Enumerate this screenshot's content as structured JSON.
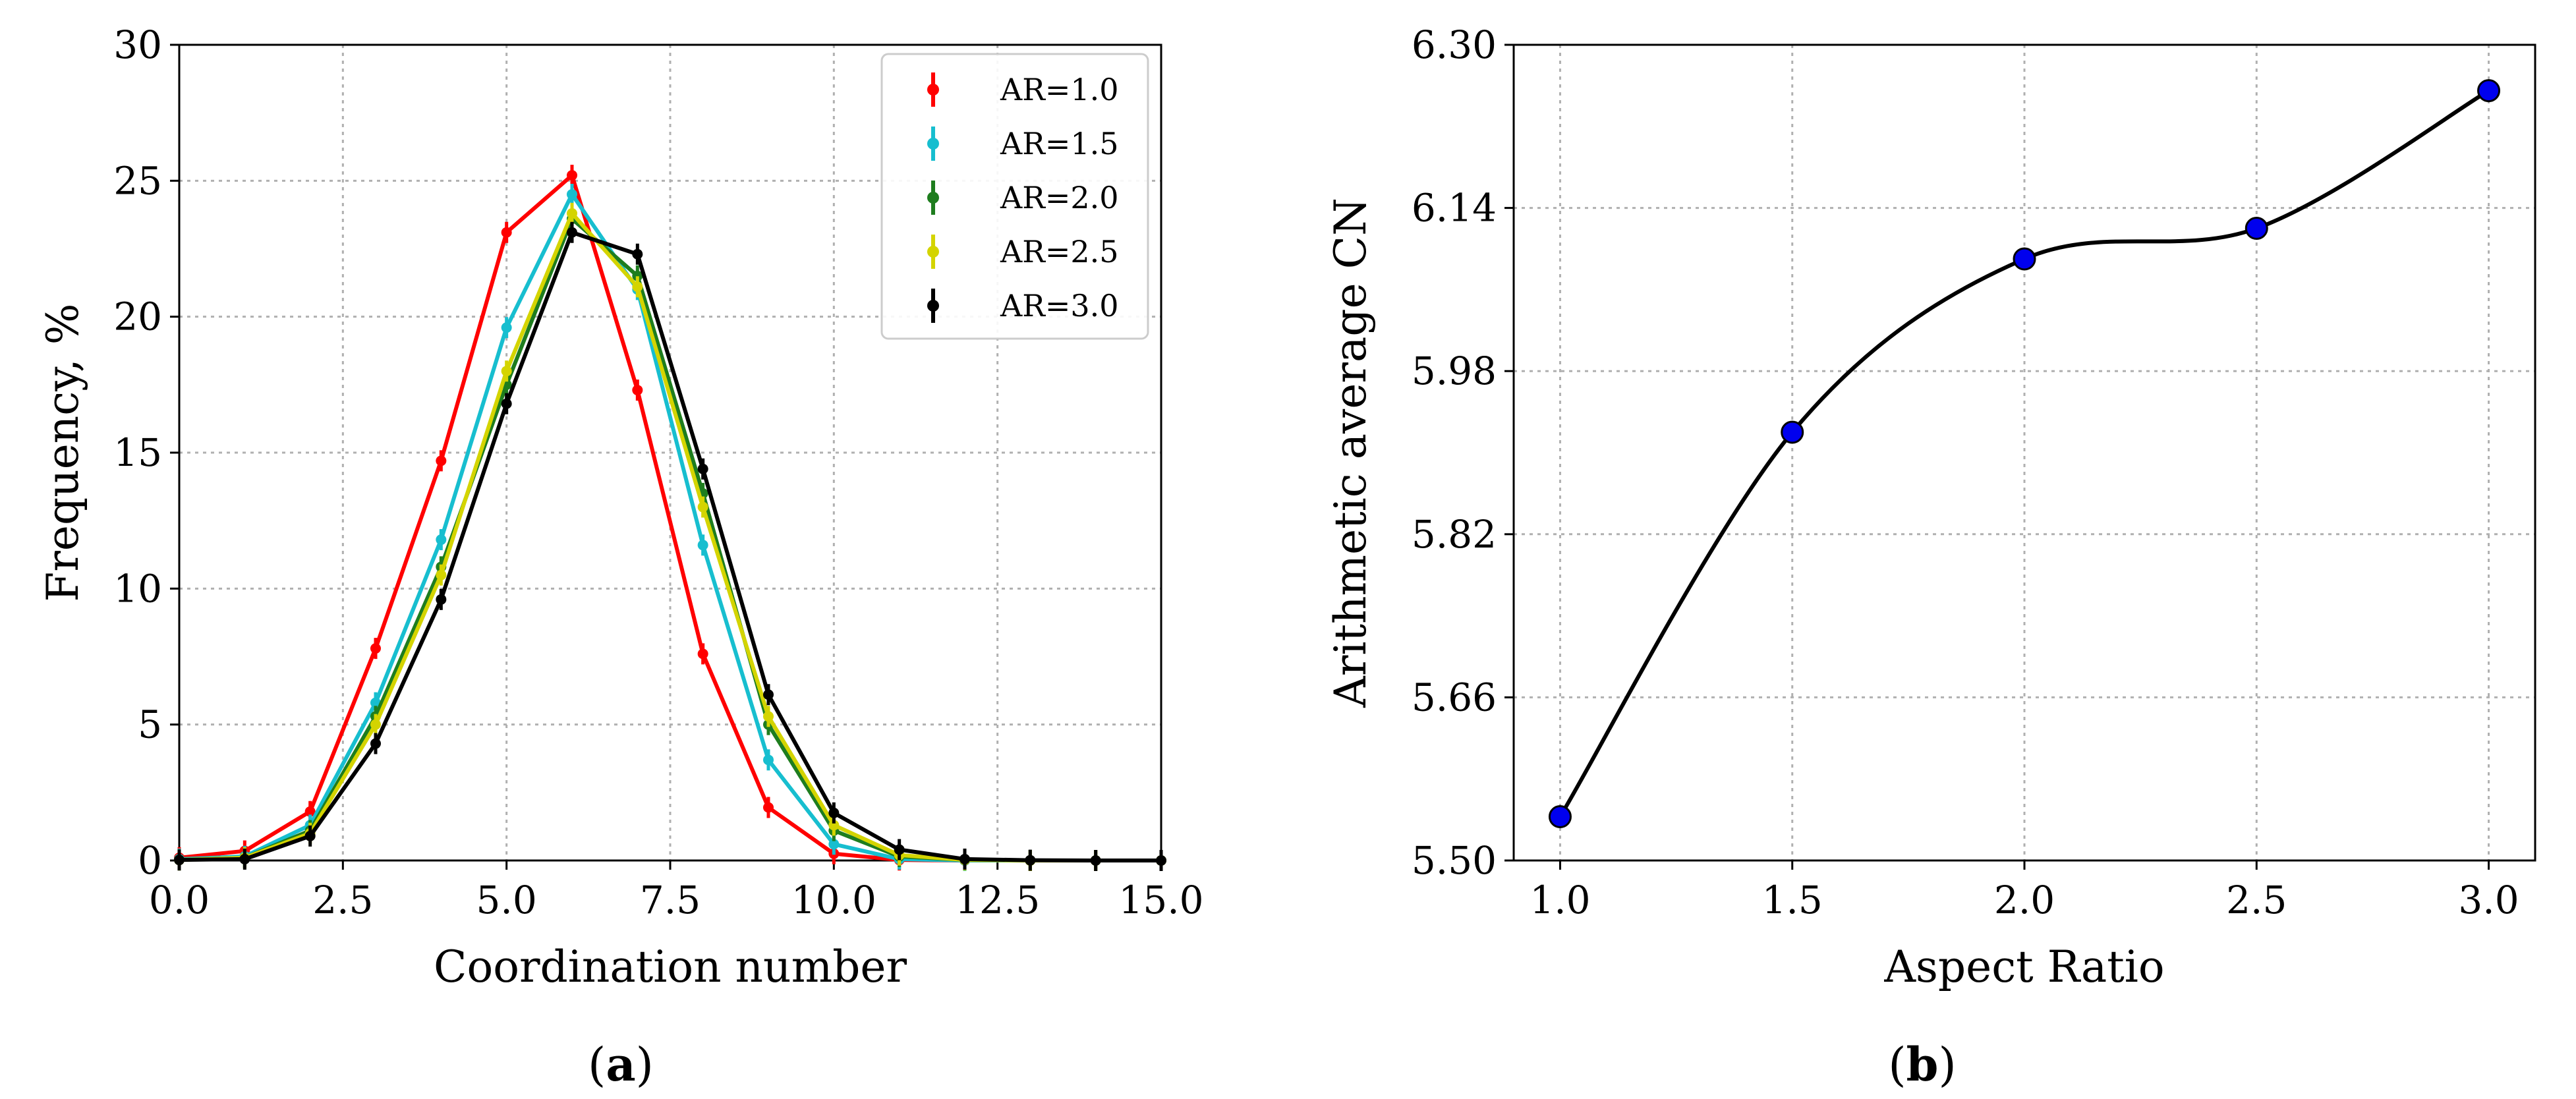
{
  "chart_data": [
    {
      "panel": "a",
      "type": "line",
      "xlabel": "Coordination number",
      "ylabel": "Frequency, %",
      "xlim": [
        0,
        15
      ],
      "ylim": [
        0,
        30
      ],
      "xticks": [
        "0.0",
        "2.5",
        "5.0",
        "7.5",
        "10.0",
        "12.5",
        "15.0"
      ],
      "yticks": [
        "0",
        "5",
        "10",
        "15",
        "20",
        "25",
        "30"
      ],
      "grid": true,
      "legend": "top-right",
      "x": [
        0,
        1,
        2,
        3,
        4,
        5,
        6,
        7,
        8,
        9,
        10,
        11,
        12,
        13,
        14,
        15
      ],
      "series": [
        {
          "name": "AR=1.0",
          "color": "#ff0000",
          "values": [
            0.1,
            0.35,
            1.8,
            7.8,
            14.7,
            23.1,
            25.2,
            17.3,
            7.6,
            1.95,
            0.25,
            0.02,
            0,
            0,
            0,
            0
          ]
        },
        {
          "name": "AR=1.5",
          "color": "#17becf",
          "values": [
            0.05,
            0.15,
            1.3,
            5.8,
            11.8,
            19.6,
            24.5,
            21.0,
            11.6,
            3.7,
            0.6,
            0.05,
            0,
            0,
            0,
            0
          ]
        },
        {
          "name": "AR=2.0",
          "color": "#1e7d1e",
          "values": [
            0.02,
            0.1,
            1.1,
            5.3,
            10.8,
            17.5,
            23.6,
            21.5,
            13.5,
            5.0,
            1.1,
            0.15,
            0.02,
            0,
            0,
            0
          ]
        },
        {
          "name": "AR=2.5",
          "color": "#d4d400",
          "values": [
            0.02,
            0.1,
            1.0,
            5.0,
            10.5,
            18.0,
            23.8,
            21.1,
            13.0,
            5.3,
            1.3,
            0.2,
            0.02,
            0,
            0,
            0
          ]
        },
        {
          "name": "AR=3.0",
          "color": "#000000",
          "values": [
            0.02,
            0.05,
            0.9,
            4.3,
            9.6,
            16.8,
            23.1,
            22.3,
            14.4,
            6.1,
            1.75,
            0.4,
            0.05,
            0.01,
            0,
            0
          ]
        }
      ],
      "panel_label": "(a)"
    },
    {
      "panel": "b",
      "type": "line",
      "xlabel": "Aspect Ratio",
      "ylabel": "Arithmetic average CN",
      "xlim": [
        0.9,
        3.1
      ],
      "ylim": [
        5.5,
        6.3
      ],
      "xticks": [
        "1.0",
        "1.5",
        "2.0",
        "2.5",
        "3.0"
      ],
      "yticks": [
        "5.50",
        "5.66",
        "5.82",
        "5.98",
        "6.14",
        "6.30"
      ],
      "grid": true,
      "x": [
        1.0,
        1.5,
        2.0,
        2.5,
        3.0
      ],
      "values": [
        5.543,
        5.92,
        6.09,
        6.12,
        6.255
      ],
      "marker_color": "#0000ee",
      "line_color": "#000000",
      "panel_label": "(b)"
    }
  ]
}
